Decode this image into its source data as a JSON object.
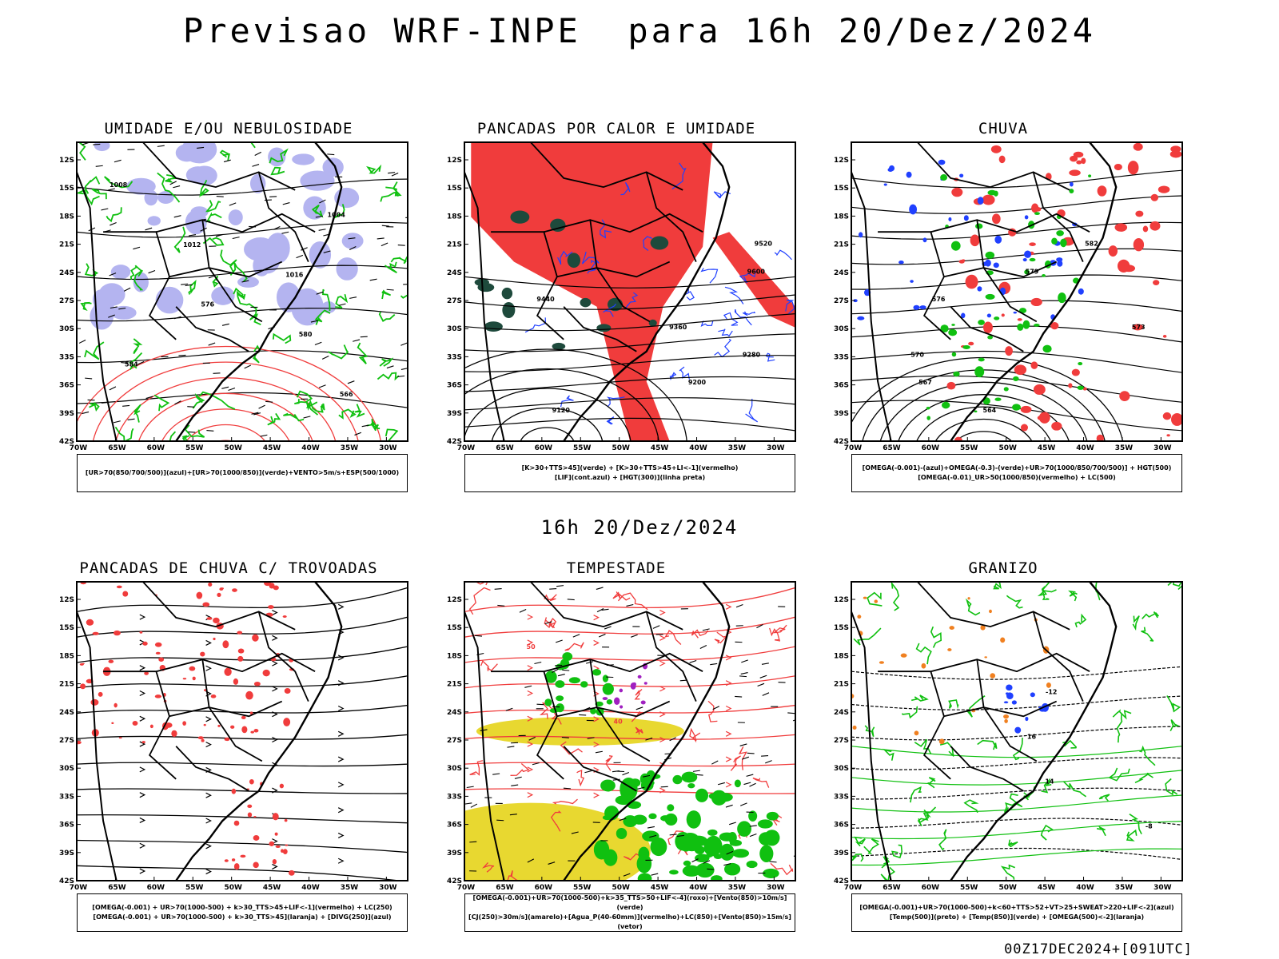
{
  "header": {
    "title": "Previsao WRF-INPE  para 16h 20/Dez/2024"
  },
  "middle": {
    "date": "16h 20/Dez/2024"
  },
  "footer": {
    "stamp": "00Z17DEC2024+[091UTC]"
  },
  "axes": {
    "lat_labels": [
      "12S",
      "15S",
      "18S",
      "21S",
      "24S",
      "27S",
      "30S",
      "33S",
      "36S",
      "39S",
      "42S"
    ],
    "lon_labels": [
      "70W",
      "65W",
      "60W",
      "55W",
      "50W",
      "45W",
      "40W",
      "35W",
      "30W"
    ]
  },
  "colors": {
    "red": "#f03c3c",
    "green": "#10c010",
    "blue": "#2040ff",
    "lavender": "#b4b4f0",
    "darkgreen": "#1e4a3c",
    "yellow": "#e8d830",
    "orange": "#f08020",
    "purple": "#a020c0"
  },
  "panels": [
    {
      "title": "UMIDADE E/OU NEBULOSIDADE",
      "legend": [
        "[UR>70(850/700/500)](azul)+[UR>70(1000/850)](verde)+VENTO>5m/s+ESP(500/1000)"
      ],
      "contour_labels": [
        "1008",
        "1004",
        "1012",
        "1016",
        "576",
        "580",
        "584",
        "566"
      ]
    },
    {
      "title": "PANCADAS POR CALOR E UMIDADE",
      "legend": [
        "[K>30+TTS>45](verde) + [K>30+TTS>45+LI<-1](vermelho)",
        "[LIF](cont.azul) + [HGT(300)](linha preta)"
      ],
      "contour_labels": [
        "9520",
        "9600",
        "9440",
        "9360",
        "9280",
        "9200",
        "9120"
      ]
    },
    {
      "title": "CHUVA",
      "legend": [
        "[OMEGA(-0.001)-(azul)+OMEGA(-0.3)-(verde)+UR>70(1000/850/700/500)] + HGT(500)",
        "[OMEGA(-0.01)_UR>50(1000/850)(vermelho) + LC(500)"
      ],
      "contour_labels": [
        "582",
        "579",
        "576",
        "573",
        "570",
        "567",
        "564"
      ]
    },
    {
      "title": "PANCADAS DE CHUVA C/ TROVOADAS",
      "legend": [
        "[OMEGA(-0.001) + UR>70(1000-500) + k>30_TTS>45+LIF<-1](vermelho) + LC(250)",
        "[OMEGA(-0.001) + UR>70(1000-500) + k>30_TTS>45](laranja) + [DIVG(250)](azul)"
      ],
      "contour_labels": []
    },
    {
      "title": "TEMPESTADE",
      "legend": [
        "[OMEGA(-0.001)+UR>70(1000-500)+k>35_TTS>50+LIF<-4](roxo)+[Vento(850)>10m/s](verde)",
        "[CJ(250)>30m/s](amarelo)+[Agua_P(40-60mm)](vermelho)+LC(850)+[Vento(850)>15m/s](vetor)"
      ],
      "contour_labels": [
        "50",
        "40"
      ]
    },
    {
      "title": "GRANIZO",
      "legend": [
        "[OMEGA(-0.001)+UR>70(1000-500)+k<60+TTS>52+VT>25+SWEAT>220+LIF<-2](azul)",
        "[Temp(500)](preto) + [Temp(850)](verde) + [OMEGA(500)<-2](laranja)"
      ],
      "contour_labels": [
        "-12",
        "16",
        "14",
        "-8"
      ]
    }
  ]
}
